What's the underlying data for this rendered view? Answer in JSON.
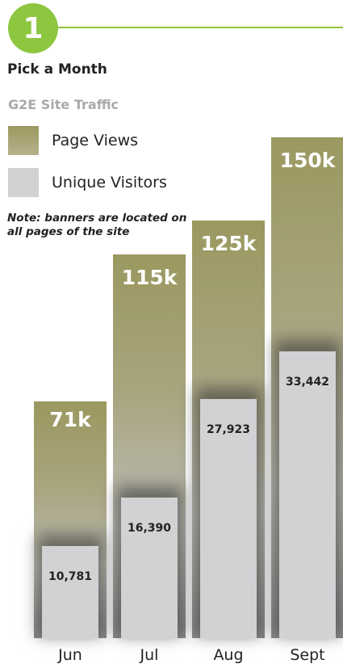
{
  "step": {
    "number": "1",
    "title": "Pick a Month"
  },
  "legend": {
    "page_views": "Page Views",
    "unique_visitors": "Unique Visitors"
  },
  "note": "Note: banners are located on all pages of the site",
  "colors": {
    "accent": "#8dc63f",
    "page_views": "#9c9961",
    "unique_visitors": "#d1d2d4"
  },
  "chart_data": {
    "type": "bar",
    "title": "G2E Site Traffic",
    "categories": [
      "Jun",
      "Jul",
      "Aug",
      "Sept"
    ],
    "series": [
      {
        "name": "Page Views",
        "values": [
          71000,
          115000,
          125000,
          150000
        ],
        "labels": [
          "71k",
          "115k",
          "125k",
          "150k"
        ]
      },
      {
        "name": "Unique Visitors",
        "values": [
          10781,
          16390,
          27923,
          33442
        ],
        "labels": [
          "10,781",
          "16,390",
          "27,923",
          "33,442"
        ]
      }
    ]
  }
}
